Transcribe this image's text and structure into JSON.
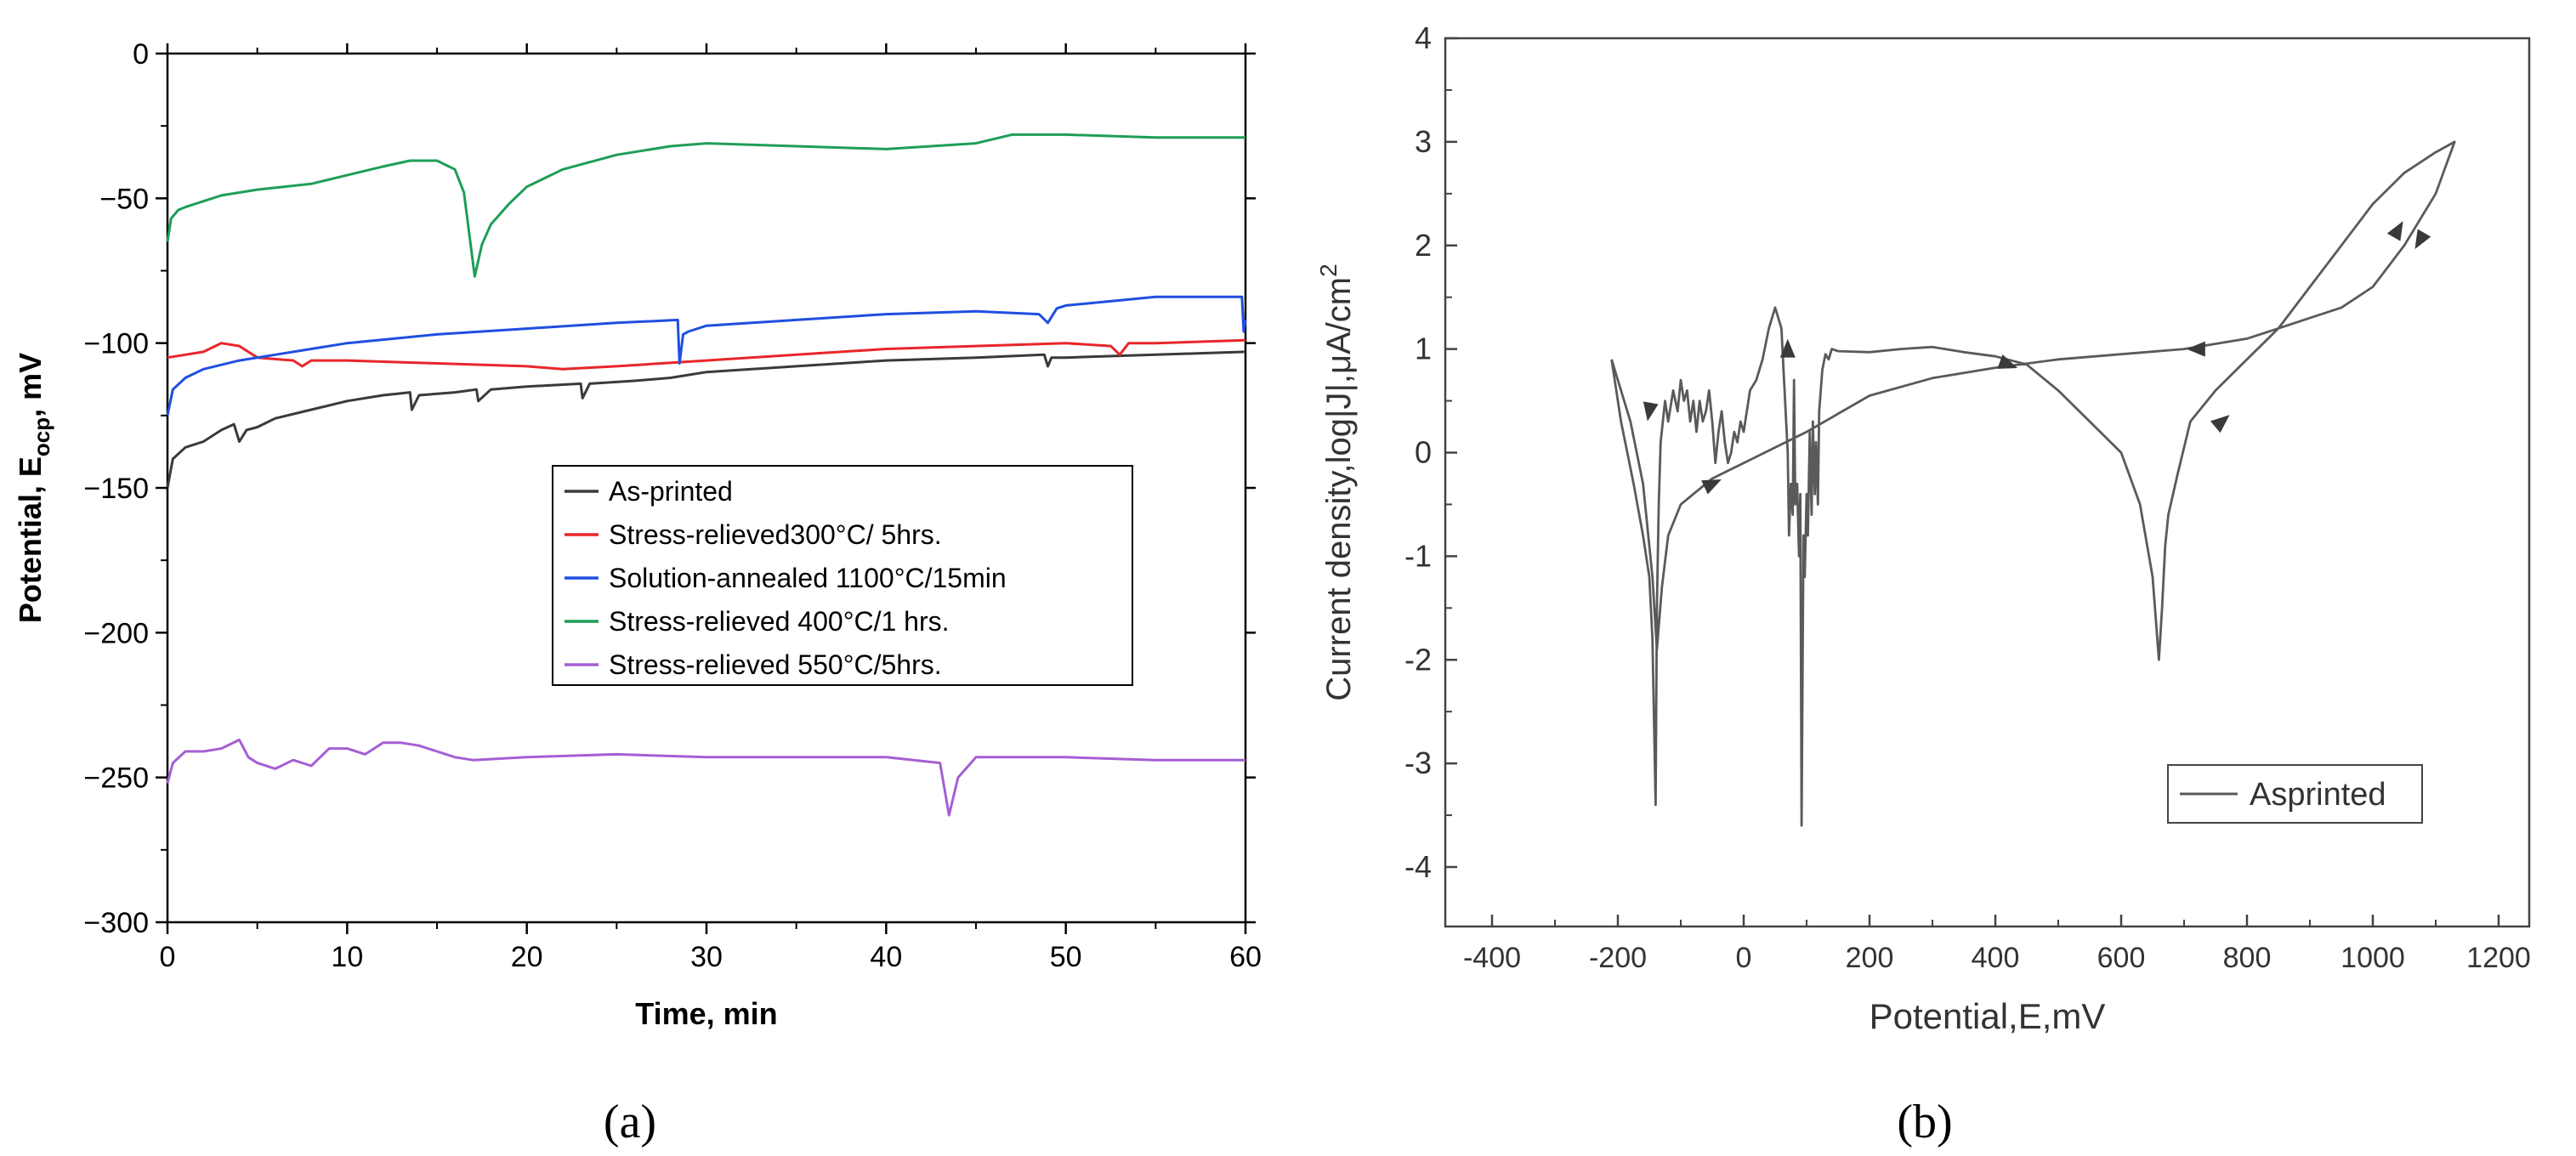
{
  "chart_data": [
    {
      "type": "line",
      "panel_label": "(a)",
      "title": "",
      "xlabel": "Time, min",
      "ylabel": "Potential, E",
      "ylabel_sub": "ocp",
      "ylabel_tail": ", mV",
      "xlim": [
        0,
        60
      ],
      "ylim": [
        -300,
        0
      ],
      "xticks": [
        0,
        10,
        20,
        30,
        40,
        50,
        60
      ],
      "yticks": [
        0,
        -50,
        -100,
        -150,
        -200,
        -250,
        -300
      ],
      "xtick_labels": [
        "0",
        "10",
        "20",
        "30",
        "40",
        "50",
        "60"
      ],
      "ytick_labels": [
        "0",
        "−50",
        "−100",
        "−150",
        "−200",
        "−250",
        "−300"
      ],
      "legend_position": "center-right",
      "series": [
        {
          "name": "As-printed",
          "color": "#3a3a3a",
          "x": [
            0,
            0.3,
            1,
            2,
            3,
            3.7,
            4,
            4.4,
            5,
            6,
            8,
            10,
            12,
            13.5,
            13.6,
            14,
            16,
            17.2,
            17.3,
            18,
            20,
            23,
            23.1,
            23.5,
            26,
            28,
            30,
            35,
            40,
            45,
            48.8,
            49,
            49.2,
            50,
            55,
            60
          ],
          "y": [
            -150,
            -140,
            -136,
            -134,
            -130,
            -128,
            -134,
            -130,
            -129,
            -126,
            -123,
            -120,
            -118,
            -117,
            -123,
            -118,
            -117,
            -116,
            -120,
            -116,
            -115,
            -114,
            -119,
            -114,
            -113,
            -112,
            -110,
            -108,
            -106,
            -105,
            -104,
            -108,
            -105,
            -105,
            -104,
            -103
          ]
        },
        {
          "name": "Stress-relieved300°C/ 5hrs.",
          "color": "#e8262a",
          "x": [
            0,
            1,
            2,
            3,
            4,
            5,
            7,
            7.5,
            8,
            10,
            15,
            20,
            22,
            25,
            30,
            35,
            40,
            45,
            50,
            52.5,
            53,
            53.5,
            55,
            60
          ],
          "y": [
            -105,
            -104,
            -103,
            -100,
            -101,
            -105,
            -106,
            -108,
            -106,
            -106,
            -107,
            -108,
            -109,
            -108,
            -106,
            -104,
            -102,
            -101,
            -100,
            -101,
            -104,
            -100,
            -100,
            -99
          ]
        },
        {
          "name": "Solution-annealed 1100°C/15min",
          "color": "#1f4fe0",
          "x": [
            0,
            0.3,
            1,
            2,
            4,
            6,
            10,
            15,
            20,
            25,
            28.4,
            28.5,
            28.7,
            29,
            30,
            35,
            40,
            45,
            48.5,
            49,
            49.5,
            50,
            55,
            59.8,
            59.9,
            60
          ],
          "y": [
            -125,
            -116,
            -112,
            -109,
            -106,
            -104,
            -100,
            -97,
            -95,
            -93,
            -92,
            -107,
            -97,
            -96,
            -94,
            -92,
            -90,
            -89,
            -90,
            -93,
            -88,
            -87,
            -84,
            -84,
            -96,
            -92
          ]
        },
        {
          "name": "Stress-relieved 400°C/1 hrs.",
          "color": "#1e9e58",
          "x": [
            0,
            0.2,
            0.6,
            1,
            2,
            3,
            5,
            8,
            10,
            12,
            13.5,
            15,
            16,
            16.5,
            17.1,
            17.5,
            18,
            19,
            20,
            22,
            25,
            28,
            30,
            35,
            40,
            45,
            47,
            50,
            55,
            60
          ],
          "y": [
            -65,
            -57,
            -54,
            -53,
            -51,
            -49,
            -47,
            -45,
            -42,
            -39,
            -37,
            -37,
            -40,
            -48,
            -77,
            -66,
            -59,
            -52,
            -46,
            -40,
            -35,
            -32,
            -31,
            -32,
            -33,
            -31,
            -28,
            -28,
            -29,
            -29
          ]
        },
        {
          "name": "Stress-relieved 550°C/5hrs.",
          "color": "#a55fd4",
          "x": [
            0,
            0.3,
            1,
            2,
            3,
            4,
            4.5,
            5,
            6,
            7,
            8,
            9,
            10,
            11,
            12,
            13,
            14,
            15,
            16,
            17,
            20,
            25,
            30,
            35,
            40,
            43,
            43.5,
            44,
            45,
            50,
            55,
            60
          ],
          "y": [
            -252,
            -245,
            -241,
            -241,
            -240,
            -237,
            -243,
            -245,
            -247,
            -244,
            -246,
            -240,
            -240,
            -242,
            -238,
            -238,
            -239,
            -241,
            -243,
            -244,
            -243,
            -242,
            -243,
            -243,
            -243,
            -245,
            -263,
            -250,
            -243,
            -243,
            -244,
            -244
          ]
        }
      ]
    },
    {
      "type": "line",
      "panel_label": "(b)",
      "title": "",
      "xlabel": "Potential,E,mV",
      "ylabel": "Current density,log|J|,μA/cm",
      "ylabel_sup": "2",
      "xlim": [
        -400,
        1300
      ],
      "ylim": [
        -4.5,
        4
      ],
      "xticks": [
        -400,
        -200,
        0,
        200,
        400,
        600,
        800,
        1000,
        1200
      ],
      "yticks": [
        4,
        3,
        2,
        1,
        0,
        -1,
        -2,
        -3,
        -4
      ],
      "xtick_labels": [
        "-400",
        "-200",
        "0",
        "200",
        "400",
        "600",
        "800",
        "1000",
        "1200"
      ],
      "ytick_labels": [
        "4",
        "3",
        "2",
        "1",
        "0",
        "-1",
        "-2",
        "-3",
        "-4"
      ],
      "legend_position": "bottom-right",
      "series": [
        {
          "name": "Asprinted",
          "color": "#5a5a5a",
          "x": [
            -210,
            -205,
            -195,
            -185,
            -175,
            -160,
            -150,
            -145,
            -140,
            -138,
            -135,
            -132,
            -125,
            -120,
            -112,
            -105,
            -100,
            -95,
            -90,
            -85,
            -80,
            -75,
            -70,
            -65,
            -60,
            -55,
            -50,
            -45,
            -40,
            -35,
            -30,
            -25,
            -20,
            -15,
            -10,
            -5,
            0,
            5,
            10,
            20,
            30,
            40,
            50,
            60,
            65,
            70,
            72,
            75,
            78,
            80,
            82,
            85,
            88,
            90,
            92,
            95,
            97,
            100,
            102,
            105,
            108,
            110,
            113,
            115,
            118,
            120,
            125,
            130,
            135,
            140,
            150,
            200,
            250,
            300,
            350,
            400,
            450,
            500,
            550,
            600,
            630,
            650,
            660,
            665,
            670,
            675,
            690,
            710,
            750,
            800,
            850,
            900,
            950,
            1000,
            1050,
            1100,
            1130,
            1100,
            1050,
            1000,
            950,
            900,
            850,
            800,
            700,
            600,
            500,
            400,
            300,
            200,
            100,
            0,
            -50,
            -100,
            -120,
            -130,
            -138,
            -145,
            -160,
            -180,
            -200,
            -210
          ],
          "y": [
            0.9,
            0.7,
            0.3,
            0.0,
            -0.3,
            -0.8,
            -1.2,
            -1.8,
            -3.4,
            -1.5,
            -0.5,
            0.1,
            0.5,
            0.3,
            0.6,
            0.4,
            0.7,
            0.5,
            0.6,
            0.3,
            0.5,
            0.2,
            0.5,
            0.3,
            0.4,
            0.6,
            0.3,
            -0.1,
            0.2,
            0.4,
            0.1,
            -0.1,
            0.0,
            0.2,
            0.1,
            0.3,
            0.2,
            0.4,
            0.6,
            0.7,
            0.9,
            1.2,
            1.4,
            1.2,
            0.6,
            0.0,
            -0.8,
            -0.3,
            -0.6,
            0.7,
            -0.5,
            -0.3,
            -1.0,
            -0.4,
            -3.6,
            -0.8,
            -1.2,
            -0.4,
            -0.8,
            0.2,
            -0.6,
            0.3,
            -0.4,
            0.1,
            -0.5,
            0.4,
            0.8,
            0.95,
            0.9,
            1.0,
            0.98,
            0.97,
            1.0,
            1.02,
            0.97,
            0.93,
            0.85,
            0.6,
            0.3,
            0.0,
            -0.5,
            -1.2,
            -2.0,
            -1.5,
            -0.9,
            -0.6,
            -0.2,
            0.3,
            0.6,
            0.9,
            1.2,
            1.6,
            2.0,
            2.4,
            2.7,
            2.9,
            3.0,
            2.5,
            2.0,
            1.6,
            1.4,
            1.3,
            1.2,
            1.1,
            1.0,
            0.95,
            0.9,
            0.82,
            0.72,
            0.55,
            0.2,
            -0.1,
            -0.25,
            -0.5,
            -0.8,
            -1.3,
            -1.9,
            -1.2,
            -0.3,
            0.3,
            0.7,
            0.9
          ]
        }
      ]
    }
  ]
}
